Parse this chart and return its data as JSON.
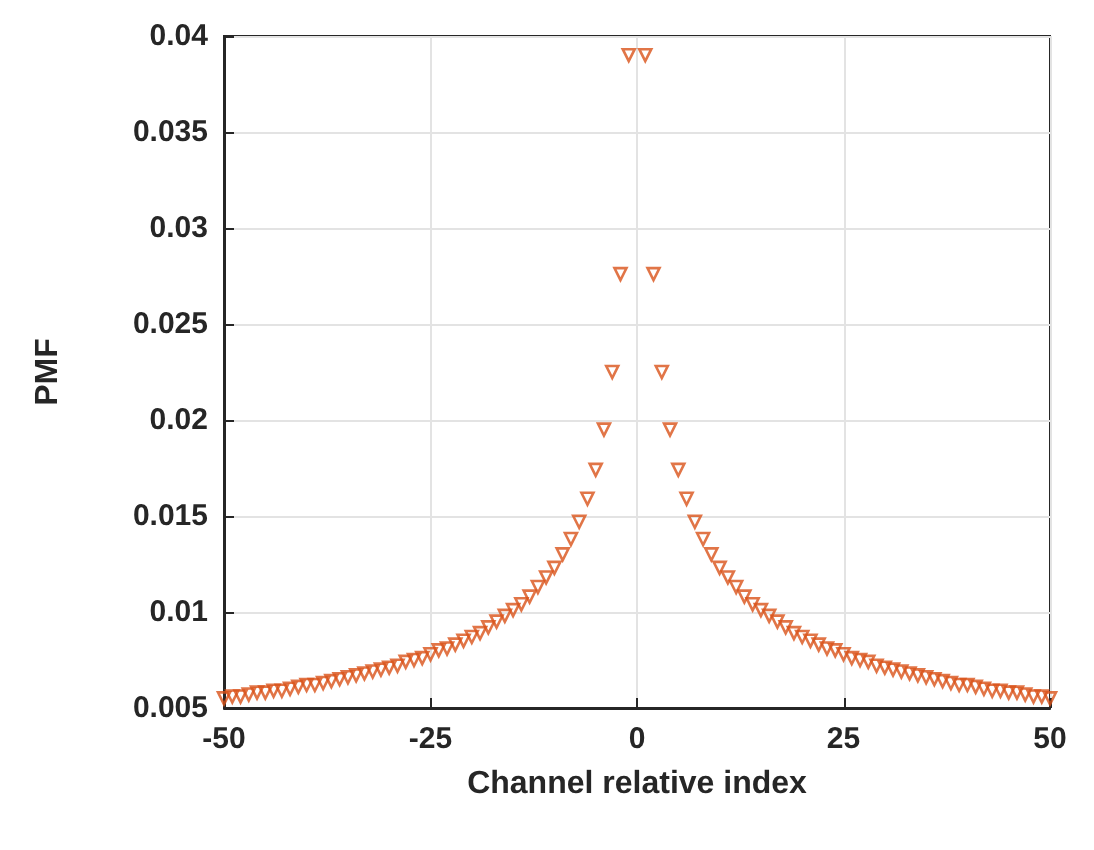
{
  "chart_data": {
    "type": "scatter",
    "xlabel": "Channel relative index",
    "ylabel": "PMF",
    "x": [
      -50,
      -49,
      -48,
      -47,
      -46,
      -45,
      -44,
      -43,
      -42,
      -41,
      -40,
      -39,
      -38,
      -37,
      -36,
      -35,
      -34,
      -33,
      -32,
      -31,
      -30,
      -29,
      -28,
      -27,
      -26,
      -25,
      -24,
      -23,
      -22,
      -21,
      -20,
      -19,
      -18,
      -17,
      -16,
      -15,
      -14,
      -13,
      -12,
      -11,
      -10,
      -9,
      -8,
      -7,
      -6,
      -5,
      -4,
      -3,
      -2,
      -1,
      1,
      2,
      3,
      4,
      5,
      6,
      7,
      8,
      9,
      10,
      11,
      12,
      13,
      14,
      15,
      16,
      17,
      18,
      19,
      20,
      21,
      22,
      23,
      24,
      25,
      26,
      27,
      28,
      29,
      30,
      31,
      32,
      33,
      34,
      35,
      36,
      37,
      38,
      39,
      40,
      41,
      42,
      43,
      44,
      45,
      46,
      47,
      48,
      49,
      50
    ],
    "series": [
      {
        "color": "#d95319",
        "values": [
          0.0055,
          0.0056,
          0.0056,
          0.0057,
          0.0058,
          0.0058,
          0.0059,
          0.0059,
          0.006,
          0.0061,
          0.0062,
          0.0062,
          0.0063,
          0.0064,
          0.0065,
          0.0066,
          0.0067,
          0.0068,
          0.0069,
          0.007,
          0.0071,
          0.0072,
          0.0074,
          0.0075,
          0.0076,
          0.0078,
          0.008,
          0.0081,
          0.0083,
          0.0085,
          0.0087,
          0.0089,
          0.0092,
          0.0095,
          0.0098,
          0.0101,
          0.0104,
          0.0108,
          0.0113,
          0.0118,
          0.0123,
          0.013,
          0.0138,
          0.0147,
          0.0159,
          0.0174,
          0.0195,
          0.0225,
          0.0276,
          0.039,
          0.039,
          0.0276,
          0.0225,
          0.0195,
          0.0174,
          0.0159,
          0.0147,
          0.0138,
          0.013,
          0.0123,
          0.0118,
          0.0113,
          0.0108,
          0.0104,
          0.0101,
          0.0098,
          0.0095,
          0.0092,
          0.0089,
          0.0087,
          0.0085,
          0.0083,
          0.0081,
          0.008,
          0.0078,
          0.0076,
          0.0075,
          0.0074,
          0.0072,
          0.0071,
          0.007,
          0.0069,
          0.0068,
          0.0067,
          0.0066,
          0.0065,
          0.0064,
          0.0063,
          0.0062,
          0.0062,
          0.0061,
          0.006,
          0.0059,
          0.0059,
          0.0058,
          0.0058,
          0.0057,
          0.0056,
          0.0056,
          0.0055
        ]
      }
    ],
    "xlim": [
      -50,
      50
    ],
    "xticks": [
      -50,
      -25,
      0,
      25,
      50
    ],
    "ylim": [
      0.005,
      0.04
    ],
    "yticks": [
      0.005,
      0.01,
      0.015,
      0.02,
      0.025,
      0.03,
      0.035,
      0.04
    ],
    "grid": true,
    "marker": "triangle"
  }
}
